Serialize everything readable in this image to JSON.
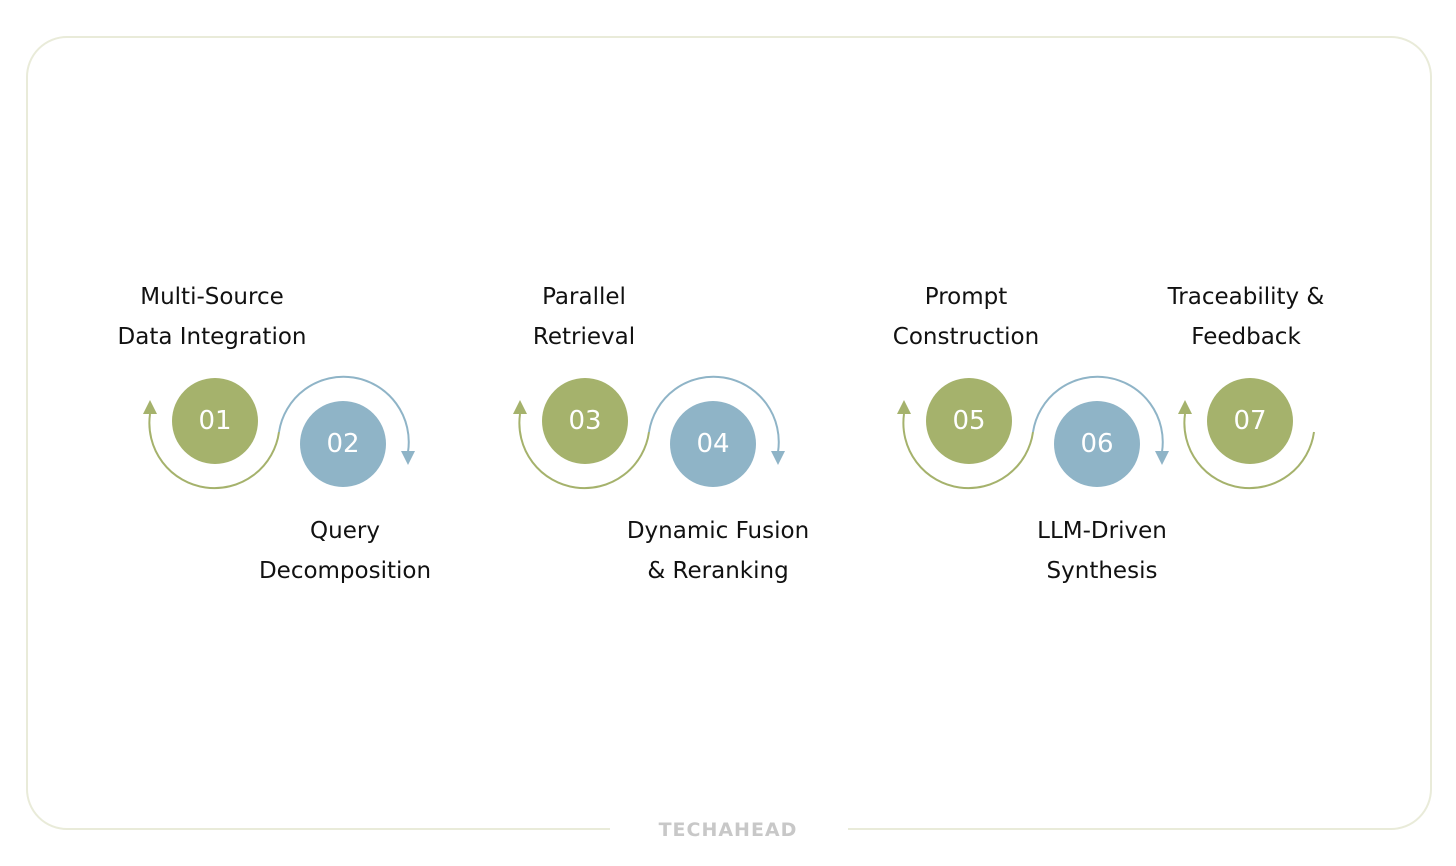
{
  "steps": [
    {
      "number": "01",
      "label_lines": [
        "Multi-Source",
        "Data Integration"
      ]
    },
    {
      "number": "02",
      "label_lines": [
        "Query",
        "Decomposition"
      ]
    },
    {
      "number": "03",
      "label_lines": [
        "Parallel",
        "Retrieval"
      ]
    },
    {
      "number": "04",
      "label_lines": [
        "Dynamic Fusion",
        "& Reranking"
      ]
    },
    {
      "number": "05",
      "label_lines": [
        "Prompt",
        "Construction"
      ]
    },
    {
      "number": "06",
      "label_lines": [
        "LLM-Driven",
        "Synthesis"
      ]
    },
    {
      "number": "07",
      "label_lines": [
        "Traceability &",
        "Feedback"
      ]
    }
  ],
  "brand": "TECHAHEAD"
}
